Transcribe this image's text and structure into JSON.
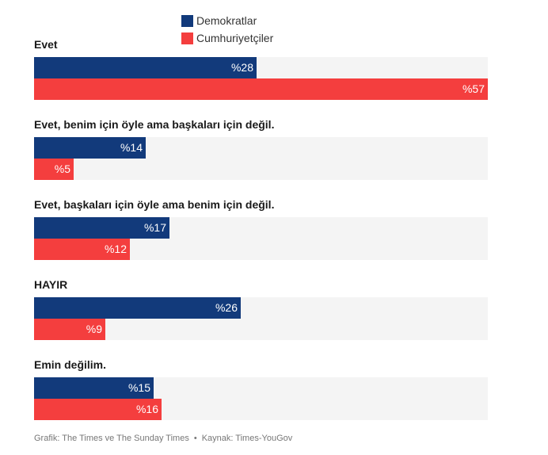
{
  "chart_data": {
    "type": "bar",
    "orientation": "horizontal",
    "categories": [
      "Evet",
      "Evet, benim için öyle ama başkaları için değil.",
      "Evet, başkaları için öyle ama benim için değil.",
      "HAYIR",
      "Emin değilim."
    ],
    "series": [
      {
        "name": "Demokratlar",
        "color": "#123a7b",
        "values": [
          28,
          14,
          17,
          26,
          15
        ],
        "labels": [
          "%28",
          "%14",
          "%17",
          "%26",
          "%15"
        ]
      },
      {
        "name": "Cumhuriyetçiler",
        "color": "#f43e3e",
        "values": [
          57,
          5,
          12,
          9,
          16
        ],
        "labels": [
          "%57",
          "%5",
          "%12",
          "%9",
          "%16"
        ]
      }
    ],
    "xlim": [
      0,
      57
    ],
    "track_color": "#f4f4f4",
    "value_label_color": "#ffffff",
    "legend_position": "top-center"
  },
  "footer": {
    "credit": "Grafik: The Times ve The Sunday Times",
    "separator": "•",
    "source": "Kaynak: Times-YouGov"
  }
}
